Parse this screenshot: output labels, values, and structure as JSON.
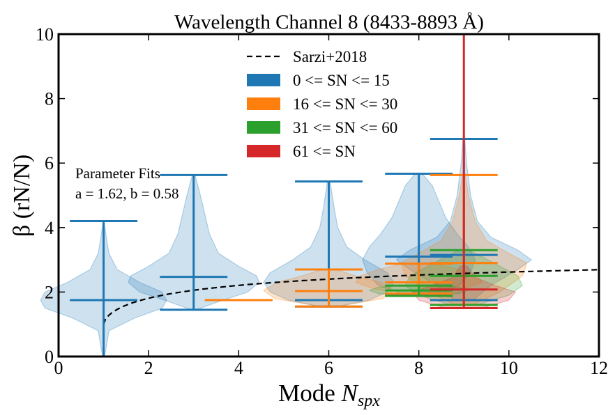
{
  "chart_data": {
    "type": "violin",
    "title": "Wavelength Channel 8 (8433-8893 Å)",
    "xlabel_main": "Mode ",
    "xlabel_var": "N",
    "xlabel_sub": "spx",
    "ylabel": "β (rN/N)",
    "xlim": [
      0,
      12
    ],
    "ylim": [
      0,
      10
    ],
    "xticks": [
      0,
      2,
      4,
      6,
      8,
      10,
      12
    ],
    "yticks": [
      0,
      2,
      4,
      6,
      8,
      10
    ],
    "grid": false,
    "legend_placement": "top-center",
    "legend": [
      {
        "label": "Sarzi+2018",
        "style": "dashed",
        "color": "#000000"
      },
      {
        "label": "0 <= SN <= 15",
        "style": "patch",
        "color": "#1f77b4"
      },
      {
        "label": "16 <= SN <= 30",
        "style": "patch",
        "color": "#ff7f0e"
      },
      {
        "label": "31 <= SN <= 60",
        "style": "patch",
        "color": "#2ca02c"
      },
      {
        "label": "61 <= SN",
        "style": "patch",
        "color": "#d62728"
      }
    ],
    "annotation": {
      "line1": "Parameter Fits",
      "line2": "a = 1.62, b = 0.58"
    },
    "fit": {
      "a": 1.62,
      "b": 0.58,
      "x_start": 1,
      "x_end": 12
    },
    "series": [
      {
        "name": "0 <= SN <= 15",
        "color": "#1f77b4",
        "violins": [
          {
            "x": 1,
            "min": 0.0,
            "median": 1.75,
            "max": 4.2,
            "cap_half_width": 0.75,
            "profile": [
              [
                0.0,
                0.02
              ],
              [
                0.3,
                0.06
              ],
              [
                0.8,
                0.12
              ],
              [
                1.2,
                0.7
              ],
              [
                1.5,
                1.3
              ],
              [
                1.75,
                1.4
              ],
              [
                2.0,
                1.3
              ],
              [
                2.3,
                0.8
              ],
              [
                2.7,
                0.3
              ],
              [
                3.2,
                0.12
              ],
              [
                3.7,
                0.06
              ],
              [
                4.2,
                0.01
              ]
            ]
          },
          {
            "x": 3,
            "min": 1.45,
            "median": 2.47,
            "max": 5.63,
            "cap_half_width": 0.75,
            "profile": [
              [
                1.45,
                0.05
              ],
              [
                1.7,
                0.55
              ],
              [
                2.0,
                1.2
              ],
              [
                2.3,
                1.45
              ],
              [
                2.5,
                1.4
              ],
              [
                2.8,
                1.0
              ],
              [
                3.2,
                0.55
              ],
              [
                3.8,
                0.35
              ],
              [
                4.4,
                0.25
              ],
              [
                5.0,
                0.15
              ],
              [
                5.63,
                0.03
              ]
            ]
          },
          {
            "x": 6,
            "min": 1.55,
            "median": 1.75,
            "max": 5.43,
            "cap_half_width": 0.75,
            "profile": [
              [
                1.55,
                0.2
              ],
              [
                1.75,
                0.9
              ],
              [
                2.0,
                1.3
              ],
              [
                2.3,
                1.45
              ],
              [
                2.6,
                1.3
              ],
              [
                3.0,
                0.8
              ],
              [
                3.4,
                0.4
              ],
              [
                4.0,
                0.2
              ],
              [
                4.6,
                0.12
              ],
              [
                5.43,
                0.03
              ]
            ]
          },
          {
            "x": 8,
            "min": 1.9,
            "median": 3.1,
            "max": 5.67,
            "cap_half_width": 0.75,
            "profile": [
              [
                1.9,
                0.25
              ],
              [
                2.2,
                0.9
              ],
              [
                2.6,
                1.15
              ],
              [
                3.0,
                1.25
              ],
              [
                3.4,
                1.1
              ],
              [
                3.8,
                0.85
              ],
              [
                4.3,
                0.6
              ],
              [
                4.8,
                0.45
              ],
              [
                5.3,
                0.3
              ],
              [
                5.67,
                0.08
              ]
            ]
          },
          {
            "x": 9,
            "min": 1.75,
            "median": 3.15,
            "max": 6.75,
            "cap_half_width": 0.75,
            "profile": [
              [
                1.75,
                0.2
              ],
              [
                2.2,
                0.6
              ],
              [
                2.7,
                1.2
              ],
              [
                3.0,
                1.5
              ],
              [
                3.3,
                1.2
              ],
              [
                3.7,
                0.6
              ],
              [
                4.2,
                0.3
              ],
              [
                5.0,
                0.15
              ],
              [
                6.0,
                0.06
              ],
              [
                6.75,
                0.02
              ]
            ]
          }
        ]
      },
      {
        "name": "16 <= SN <= 30",
        "color": "#ff7f0e",
        "violins": [
          {
            "x": 4,
            "min": 1.75,
            "median": 1.75,
            "max": 1.75,
            "cap_half_width": 0.75,
            "profile": []
          },
          {
            "x": 6,
            "min": 1.55,
            "median": 2.03,
            "max": 2.7,
            "cap_half_width": 0.75,
            "profile": [
              [
                1.55,
                0.2
              ],
              [
                1.8,
                1.2
              ],
              [
                2.05,
                1.45
              ],
              [
                2.3,
                1.15
              ],
              [
                2.5,
                0.6
              ],
              [
                2.7,
                0.15
              ]
            ]
          },
          {
            "x": 8,
            "min": 1.95,
            "median": 2.3,
            "max": 2.88,
            "cap_half_width": 0.75,
            "profile": [
              [
                1.95,
                0.3
              ],
              [
                2.1,
                1.0
              ],
              [
                2.3,
                1.4
              ],
              [
                2.5,
                1.3
              ],
              [
                2.7,
                0.9
              ],
              [
                2.88,
                0.35
              ]
            ]
          },
          {
            "x": 9,
            "min": 1.6,
            "median": 2.9,
            "max": 5.63,
            "cap_half_width": 0.75,
            "profile": [
              [
                1.6,
                0.2
              ],
              [
                2.0,
                0.8
              ],
              [
                2.5,
                1.3
              ],
              [
                2.9,
                1.4
              ],
              [
                3.2,
                1.0
              ],
              [
                3.6,
                0.5
              ],
              [
                4.2,
                0.25
              ],
              [
                5.0,
                0.1
              ],
              [
                5.63,
                0.03
              ]
            ]
          }
        ]
      },
      {
        "name": "31 <= SN <= 60",
        "color": "#2ca02c",
        "violins": [
          {
            "x": 8,
            "min": 1.88,
            "median": 2.05,
            "max": 2.2,
            "cap_half_width": 0.75,
            "profile": [
              [
                1.88,
                0.3
              ],
              [
                1.95,
                0.9
              ],
              [
                2.05,
                1.1
              ],
              [
                2.15,
                0.9
              ],
              [
                2.2,
                0.4
              ]
            ]
          },
          {
            "x": 9,
            "min": 1.6,
            "median": 2.5,
            "max": 3.3,
            "cap_half_width": 0.75,
            "profile": [
              [
                1.6,
                0.3
              ],
              [
                1.9,
                1.0
              ],
              [
                2.2,
                1.3
              ],
              [
                2.5,
                1.2
              ],
              [
                2.8,
                0.8
              ],
              [
                3.1,
                0.4
              ],
              [
                3.3,
                0.1
              ]
            ]
          }
        ]
      },
      {
        "name": "61 <= SN",
        "color": "#d62728",
        "violins": [
          {
            "x": 9,
            "min": 1.5,
            "median": 2.08,
            "max": 10.0,
            "cap_half_width": 0.75,
            "profile": [
              [
                1.5,
                0.4
              ],
              [
                1.75,
                1.0
              ],
              [
                2.0,
                1.15
              ],
              [
                2.2,
                0.7
              ],
              [
                2.45,
                0.25
              ],
              [
                2.8,
                0.08
              ]
            ]
          }
        ]
      }
    ]
  }
}
